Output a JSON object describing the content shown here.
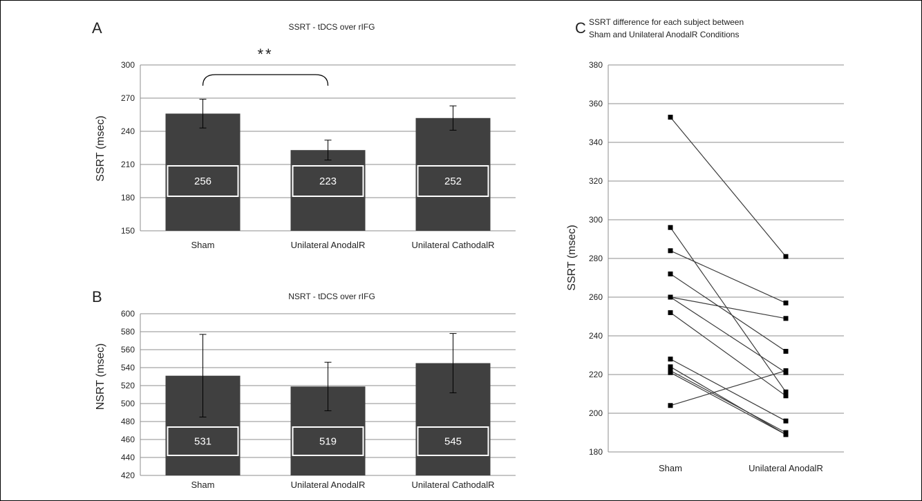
{
  "colors": {
    "bar": "#404040",
    "grid": "#8c8c8c",
    "line": "#3a3a3a",
    "text": "#222222"
  },
  "chart_data": [
    {
      "panel": "A",
      "type": "bar",
      "title": "SSRT - tDCS over rIFG",
      "ylabel": "SSRT (msec)",
      "xlabel": "",
      "ylim": [
        150,
        300
      ],
      "yticks": [
        150,
        180,
        210,
        240,
        270,
        300
      ],
      "grid": true,
      "categories": [
        "Sham",
        "Unilateral AnodalR",
        "Unilateral CathodalR"
      ],
      "values": [
        256,
        223,
        252
      ],
      "value_labels": [
        "256",
        "223",
        "252"
      ],
      "error": [
        13,
        9,
        11
      ],
      "annotations": [
        {
          "text": "**",
          "between": [
            "Sham",
            "Unilateral AnodalR"
          ]
        }
      ]
    },
    {
      "panel": "B",
      "type": "bar",
      "title": "NSRT - tDCS over rIFG",
      "ylabel": "NSRT (msec)",
      "xlabel": "",
      "ylim": [
        420,
        600
      ],
      "yticks": [
        420,
        440,
        460,
        480,
        500,
        520,
        540,
        560,
        580,
        600
      ],
      "grid": true,
      "categories": [
        "Sham",
        "Unilateral AnodalR",
        "Unilateral CathodalR"
      ],
      "values": [
        531,
        519,
        545
      ],
      "value_labels": [
        "531",
        "519",
        "545"
      ],
      "error": [
        46,
        27,
        33
      ]
    },
    {
      "panel": "C",
      "type": "line",
      "title_lines": [
        "SSRT difference for each subject between",
        "Sham and  Unilateral AnodalR  Conditions"
      ],
      "ylabel": "SSRT (msec)",
      "xlabel": "",
      "ylim": [
        180,
        380
      ],
      "yticks": [
        180,
        200,
        220,
        240,
        260,
        280,
        300,
        320,
        340,
        360,
        380
      ],
      "grid": true,
      "categories": [
        "Sham",
        "Unilateral AnodalR"
      ],
      "subjects": [
        [
          353,
          281
        ],
        [
          296,
          211
        ],
        [
          284,
          257
        ],
        [
          272,
          232
        ],
        [
          260,
          249
        ],
        [
          260,
          221
        ],
        [
          252,
          209
        ],
        [
          228,
          196
        ],
        [
          224,
          189
        ],
        [
          222,
          190
        ],
        [
          221,
          189
        ],
        [
          204,
          222
        ]
      ]
    }
  ]
}
